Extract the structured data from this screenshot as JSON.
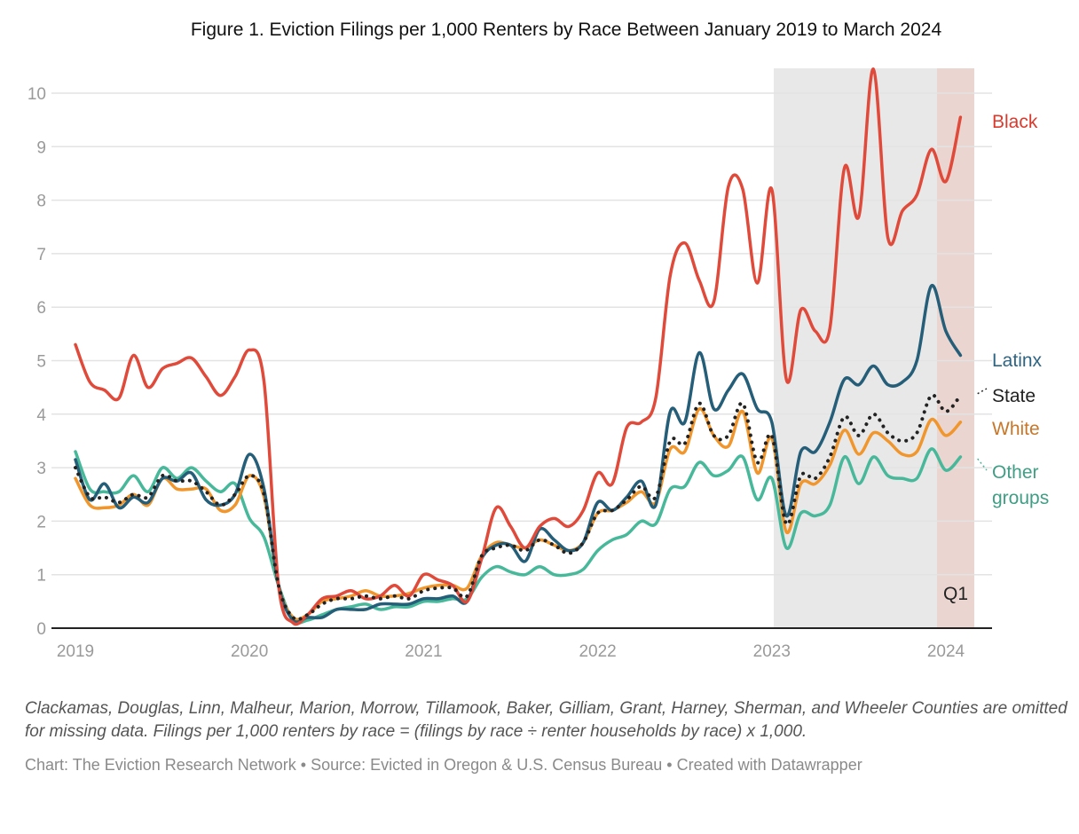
{
  "title": "Figure 1. Eviction Filings per 1,000 Renters by Race Between January 2019 to March 2024",
  "notes": "Clackamas, Douglas, Linn, Malheur, Marion, Morrow, Tillamook, Baker, Gilliam, Grant, Harney, Sherman, and Wheeler Counties are omitted for missing data. Filings per 1,000 renters by race = (filings by race ÷ renter households by race) x 1,000.",
  "credit": "Chart: The Eviction Research Network • Source: Evicted in Oregon & U.S. Census Bureau • Created with Datawrapper",
  "chart_data": {
    "type": "line",
    "title": "Figure 1. Eviction Filings per 1,000 Renters by Race Between January 2019 to March 2024",
    "xlabel": "",
    "ylabel": "",
    "x_start": "2019-01",
    "x_end": "2024-03",
    "x_ticks": [
      "2019",
      "2020",
      "2021",
      "2022",
      "2023",
      "2024"
    ],
    "y_ticks": [
      0,
      1,
      2,
      3,
      4,
      5,
      6,
      7,
      8,
      9,
      10
    ],
    "ylim": [
      0,
      10.5
    ],
    "grid": true,
    "legend": "direct-labels-right",
    "annotations": [
      {
        "type": "shaded-range",
        "from": "2023-01",
        "to": "2023-12",
        "color": "#e8e8e8"
      },
      {
        "type": "shaded-range",
        "from": "2023-12",
        "to": "2024-03",
        "color": "#ead5d0",
        "label": "Q1"
      }
    ],
    "series": [
      {
        "name": "Black",
        "color": "#e04a3a",
        "label_color": "#d93a2e",
        "style": "solid",
        "values": [
          5.3,
          4.6,
          4.45,
          4.3,
          5.1,
          4.5,
          4.85,
          4.95,
          5.05,
          4.7,
          4.35,
          4.7,
          5.2,
          4.6,
          0.8,
          0.1,
          0.25,
          0.55,
          0.6,
          0.7,
          0.55,
          0.6,
          0.8,
          0.6,
          1.0,
          0.9,
          0.8,
          0.5,
          1.3,
          2.25,
          1.9,
          1.5,
          1.9,
          2.05,
          1.9,
          2.2,
          2.9,
          2.7,
          3.75,
          3.85,
          4.3,
          6.6,
          7.2,
          6.5,
          6.1,
          8.25,
          8.2,
          6.45,
          8.2,
          4.65,
          5.95,
          5.55,
          5.6,
          8.6,
          7.7,
          10.45,
          7.3,
          7.8,
          8.1,
          8.95,
          8.35,
          9.55
        ]
      },
      {
        "name": "Latinx",
        "color": "#255e78",
        "label_color": "#2e6584",
        "style": "solid",
        "values": [
          3.15,
          2.4,
          2.7,
          2.25,
          2.45,
          2.35,
          2.8,
          2.75,
          2.9,
          2.4,
          2.3,
          2.5,
          3.25,
          2.6,
          0.8,
          0.15,
          0.2,
          0.2,
          0.35,
          0.35,
          0.35,
          0.45,
          0.45,
          0.45,
          0.55,
          0.55,
          0.6,
          0.5,
          1.3,
          1.55,
          1.55,
          1.25,
          1.85,
          1.65,
          1.45,
          1.6,
          2.35,
          2.2,
          2.45,
          2.75,
          2.3,
          4.05,
          3.85,
          5.15,
          4.1,
          4.45,
          4.75,
          4.1,
          3.85,
          2.1,
          3.3,
          3.3,
          3.85,
          4.65,
          4.55,
          4.9,
          4.55,
          4.6,
          5.0,
          6.4,
          5.55,
          5.1
        ]
      },
      {
        "name": "State",
        "color": "#222222",
        "label_color": "#222222",
        "style": "dotted",
        "values": [
          3.0,
          2.45,
          2.45,
          2.35,
          2.5,
          2.45,
          2.85,
          2.75,
          2.75,
          2.55,
          2.3,
          2.5,
          2.85,
          2.5,
          0.8,
          0.2,
          0.25,
          0.45,
          0.55,
          0.55,
          0.6,
          0.55,
          0.6,
          0.55,
          0.7,
          0.75,
          0.75,
          0.6,
          1.35,
          1.5,
          1.55,
          1.45,
          1.65,
          1.55,
          1.4,
          1.6,
          2.15,
          2.2,
          2.4,
          2.65,
          2.45,
          3.5,
          3.45,
          4.2,
          3.6,
          3.6,
          4.2,
          3.1,
          3.6,
          1.95,
          2.85,
          2.8,
          3.2,
          3.95,
          3.6,
          4.0,
          3.65,
          3.5,
          3.65,
          4.35,
          4.05,
          4.35
        ]
      },
      {
        "name": "White",
        "color": "#f0962d",
        "label_color": "#c8772a",
        "style": "solid",
        "values": [
          2.8,
          2.3,
          2.25,
          2.3,
          2.5,
          2.3,
          2.8,
          2.6,
          2.6,
          2.6,
          2.2,
          2.3,
          2.85,
          2.45,
          0.8,
          0.2,
          0.25,
          0.5,
          0.55,
          0.6,
          0.7,
          0.6,
          0.6,
          0.65,
          0.75,
          0.8,
          0.8,
          0.75,
          1.35,
          1.6,
          1.55,
          1.5,
          1.65,
          1.55,
          1.45,
          1.6,
          2.15,
          2.2,
          2.35,
          2.55,
          2.35,
          3.35,
          3.3,
          4.1,
          3.6,
          3.4,
          4.05,
          2.9,
          3.55,
          1.8,
          2.7,
          2.7,
          3.05,
          3.7,
          3.25,
          3.65,
          3.5,
          3.25,
          3.3,
          3.9,
          3.6,
          3.85
        ]
      },
      {
        "name": "Other groups",
        "color": "#47b89a",
        "label_color": "#3f9e84",
        "style": "solid",
        "values": [
          3.3,
          2.6,
          2.55,
          2.55,
          2.85,
          2.55,
          3.0,
          2.8,
          3.0,
          2.75,
          2.55,
          2.7,
          2.05,
          1.7,
          0.8,
          0.15,
          0.15,
          0.25,
          0.35,
          0.4,
          0.45,
          0.35,
          0.4,
          0.4,
          0.5,
          0.5,
          0.55,
          0.55,
          0.95,
          1.15,
          1.05,
          1.0,
          1.15,
          1.0,
          1.0,
          1.1,
          1.45,
          1.65,
          1.75,
          2.0,
          1.95,
          2.6,
          2.65,
          3.1,
          2.85,
          2.95,
          3.2,
          2.4,
          2.8,
          1.5,
          2.15,
          2.1,
          2.3,
          3.2,
          2.7,
          3.2,
          2.85,
          2.8,
          2.8,
          3.35,
          2.95,
          3.2
        ]
      }
    ]
  }
}
